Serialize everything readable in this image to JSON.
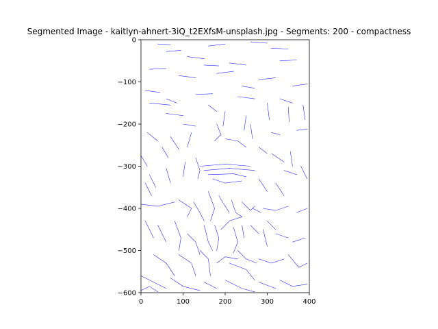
{
  "chart_data": {
    "type": "line",
    "title": "Segmented Image - kaitlyn-ahnert-3iQ_t2EXfsM-unsplash.jpg - Segments: 200 - compactness",
    "xlabel": "",
    "ylabel": "",
    "xlim": [
      0,
      400
    ],
    "ylim": [
      -600,
      0
    ],
    "x_ticks": [
      0,
      100,
      200,
      300,
      400
    ],
    "x_tick_labels": [
      "0",
      "100",
      "200",
      "300",
      "400"
    ],
    "y_ticks": [
      0,
      -100,
      -200,
      -300,
      -400,
      -500,
      -600
    ],
    "y_tick_labels": [
      "0",
      "−100",
      "−200",
      "−300",
      "−400",
      "−500",
      "−600"
    ],
    "line_color": "#0000ff",
    "grid": false,
    "legend": "none",
    "series": [
      {
        "values": [
          [
            40,
            -10
          ],
          [
            70,
            -12
          ]
        ]
      },
      {
        "values": [
          [
            60,
            -28
          ],
          [
            95,
            -25
          ]
        ]
      },
      {
        "values": [
          [
            160,
            -15
          ],
          [
            200,
            -10
          ]
        ]
      },
      {
        "values": [
          [
            260,
            -5
          ],
          [
            300,
            -8
          ]
        ]
      },
      {
        "values": [
          [
            310,
            -20
          ],
          [
            350,
            -22
          ]
        ]
      },
      {
        "values": [
          [
            110,
            -40
          ],
          [
            150,
            -45
          ]
        ]
      },
      {
        "values": [
          [
            210,
            -55
          ],
          [
            250,
            -60
          ]
        ]
      },
      {
        "values": [
          [
            330,
            -50
          ],
          [
            370,
            -48
          ]
        ]
      },
      {
        "values": [
          [
            20,
            -70
          ],
          [
            60,
            -68
          ]
        ]
      },
      {
        "values": [
          [
            90,
            -85
          ],
          [
            130,
            -90
          ]
        ]
      },
      {
        "values": [
          [
            180,
            -80
          ],
          [
            220,
            -75
          ]
        ]
      },
      {
        "values": [
          [
            280,
            -95
          ],
          [
            320,
            -90
          ]
        ]
      },
      {
        "values": [
          [
            360,
            -110
          ],
          [
            395,
            -105
          ]
        ]
      },
      {
        "values": [
          [
            10,
            -120
          ],
          [
            45,
            -125
          ]
        ]
      },
      {
        "values": [
          [
            130,
            -130
          ],
          [
            170,
            -128
          ]
        ]
      },
      {
        "values": [
          [
            230,
            -135
          ],
          [
            270,
            -140
          ]
        ]
      },
      {
        "values": [
          [
            330,
            -140
          ],
          [
            360,
            -150
          ]
        ]
      },
      {
        "values": [
          [
            20,
            -150
          ],
          [
            70,
            -155
          ]
        ]
      },
      {
        "values": [
          [
            160,
            -155
          ],
          [
            180,
            -170
          ]
        ]
      },
      {
        "values": [
          [
            300,
            -150
          ],
          [
            305,
            -190
          ]
        ]
      },
      {
        "values": [
          [
            350,
            -160
          ],
          [
            352,
            -195
          ]
        ]
      },
      {
        "values": [
          [
            385,
            -155
          ],
          [
            390,
            -190
          ]
        ]
      },
      {
        "values": [
          [
            60,
            -175
          ],
          [
            100,
            -180
          ]
        ]
      },
      {
        "values": [
          [
            100,
            -200
          ],
          [
            130,
            -205
          ]
        ]
      },
      {
        "values": [
          [
            200,
            -170
          ],
          [
            195,
            -205
          ]
        ]
      },
      {
        "values": [
          [
            250,
            -180
          ],
          [
            245,
            -215
          ]
        ]
      },
      {
        "values": [
          [
            370,
            -215
          ],
          [
            395,
            -212
          ]
        ]
      },
      {
        "values": [
          [
            15,
            -220
          ],
          [
            40,
            -240
          ]
        ]
      },
      {
        "values": [
          [
            70,
            -230
          ],
          [
            90,
            -260
          ]
        ]
      },
      {
        "values": [
          [
            120,
            -220
          ],
          [
            110,
            -255
          ]
        ]
      },
      {
        "values": [
          [
            260,
            -200
          ],
          [
            265,
            -235
          ]
        ]
      },
      {
        "values": [
          [
            310,
            -220
          ],
          [
            330,
            -225
          ]
        ]
      },
      {
        "values": [
          [
            180,
            -200
          ],
          [
            190,
            -225
          ],
          [
            175,
            -240
          ]
        ]
      },
      {
        "values": [
          [
            200,
            -235
          ],
          [
            230,
            -240
          ],
          [
            250,
            -255
          ]
        ]
      },
      {
        "values": [
          [
            0,
            -275
          ],
          [
            15,
            -300
          ]
        ]
      },
      {
        "values": [
          [
            20,
            -320
          ],
          [
            35,
            -350
          ]
        ]
      },
      {
        "values": [
          [
            60,
            -305
          ],
          [
            70,
            -340
          ]
        ]
      },
      {
        "values": [
          [
            105,
            -290
          ],
          [
            100,
            -325
          ]
        ]
      },
      {
        "values": [
          [
            130,
            -280
          ],
          [
            140,
            -310
          ],
          [
            135,
            -330
          ]
        ]
      },
      {
        "values": [
          [
            140,
            -300
          ],
          [
            200,
            -295
          ],
          [
            260,
            -300
          ]
        ]
      },
      {
        "values": [
          [
            150,
            -310
          ],
          [
            210,
            -305
          ],
          [
            270,
            -310
          ]
        ]
      },
      {
        "values": [
          [
            160,
            -320
          ],
          [
            220,
            -318
          ],
          [
            250,
            -325
          ]
        ]
      },
      {
        "values": [
          [
            170,
            -330
          ],
          [
            200,
            -340
          ],
          [
            240,
            -335
          ]
        ]
      },
      {
        "values": [
          [
            280,
            -255
          ],
          [
            300,
            -270
          ]
        ]
      },
      {
        "values": [
          [
            310,
            -270
          ],
          [
            340,
            -290
          ]
        ]
      },
      {
        "values": [
          [
            355,
            -265
          ],
          [
            360,
            -300
          ]
        ]
      },
      {
        "values": [
          [
            380,
            -300
          ],
          [
            395,
            -330
          ]
        ]
      },
      {
        "values": [
          [
            280,
            -330
          ],
          [
            300,
            -360
          ]
        ]
      },
      {
        "values": [
          [
            320,
            -340
          ],
          [
            340,
            -370
          ]
        ]
      },
      {
        "values": [
          [
            0,
            -390
          ],
          [
            40,
            -395
          ],
          [
            80,
            -385
          ]
        ]
      },
      {
        "values": [
          [
            90,
            -380
          ],
          [
            120,
            -400
          ],
          [
            110,
            -420
          ]
        ]
      },
      {
        "values": [
          [
            125,
            -385
          ],
          [
            140,
            -410
          ],
          [
            150,
            -430
          ]
        ]
      },
      {
        "values": [
          [
            160,
            -360
          ],
          [
            175,
            -400
          ],
          [
            165,
            -430
          ]
        ]
      },
      {
        "values": [
          [
            185,
            -370
          ],
          [
            200,
            -395
          ],
          [
            210,
            -410
          ]
        ]
      },
      {
        "values": [
          [
            215,
            -380
          ],
          [
            225,
            -410
          ],
          [
            240,
            -420
          ]
        ]
      },
      {
        "values": [
          [
            240,
            -385
          ],
          [
            260,
            -405
          ],
          [
            270,
            -395
          ]
        ]
      },
      {
        "values": [
          [
            265,
            -400
          ],
          [
            285,
            -410
          ]
        ]
      },
      {
        "values": [
          [
            290,
            -400
          ],
          [
            320,
            -405
          ],
          [
            350,
            -395
          ]
        ]
      },
      {
        "values": [
          [
            370,
            -410
          ],
          [
            395,
            -400
          ]
        ]
      },
      {
        "values": [
          [
            10,
            -430
          ],
          [
            30,
            -470
          ]
        ]
      },
      {
        "values": [
          [
            40,
            -440
          ],
          [
            60,
            -480
          ]
        ]
      },
      {
        "values": [
          [
            80,
            -430
          ],
          [
            95,
            -470
          ],
          [
            90,
            -500
          ]
        ]
      },
      {
        "values": [
          [
            150,
            -440
          ],
          [
            160,
            -480
          ],
          [
            170,
            -500
          ]
        ]
      },
      {
        "values": [
          [
            175,
            -440
          ],
          [
            185,
            -470
          ],
          [
            180,
            -500
          ]
        ]
      },
      {
        "values": [
          [
            190,
            -450
          ],
          [
            210,
            -430
          ],
          [
            240,
            -420
          ]
        ]
      },
      {
        "values": [
          [
            220,
            -445
          ],
          [
            230,
            -480
          ],
          [
            220,
            -505
          ]
        ]
      },
      {
        "values": [
          [
            240,
            -440
          ],
          [
            245,
            -470
          ]
        ]
      },
      {
        "values": [
          [
            260,
            -440
          ],
          [
            280,
            -460
          ]
        ]
      },
      {
        "values": [
          [
            290,
            -450
          ],
          [
            300,
            -490
          ]
        ]
      },
      {
        "values": [
          [
            320,
            -460
          ],
          [
            350,
            -470
          ]
        ]
      },
      {
        "values": [
          [
            360,
            -480
          ],
          [
            390,
            -470
          ]
        ]
      },
      {
        "values": [
          [
            30,
            -510
          ],
          [
            60,
            -530
          ],
          [
            80,
            -560
          ]
        ]
      },
      {
        "values": [
          [
            90,
            -510
          ],
          [
            120,
            -530
          ],
          [
            130,
            -560
          ]
        ]
      },
      {
        "values": [
          [
            140,
            -500
          ],
          [
            160,
            -520
          ],
          [
            165,
            -560
          ]
        ]
      },
      {
        "values": [
          [
            180,
            -530
          ],
          [
            200,
            -515
          ],
          [
            230,
            -520
          ]
        ]
      },
      {
        "values": [
          [
            210,
            -530
          ],
          [
            250,
            -545
          ],
          [
            270,
            -570
          ]
        ]
      },
      {
        "values": [
          [
            280,
            -520
          ],
          [
            310,
            -530
          ],
          [
            340,
            -520
          ]
        ]
      },
      {
        "values": [
          [
            350,
            -510
          ],
          [
            375,
            -540
          ],
          [
            395,
            -530
          ]
        ]
      },
      {
        "values": [
          [
            0,
            -560
          ],
          [
            30,
            -575
          ],
          [
            60,
            -590
          ]
        ]
      },
      {
        "values": [
          [
            70,
            -565
          ],
          [
            100,
            -585
          ],
          [
            140,
            -595
          ]
        ]
      },
      {
        "values": [
          [
            150,
            -575
          ],
          [
            180,
            -590
          ]
        ]
      },
      {
        "values": [
          [
            200,
            -570
          ],
          [
            240,
            -590
          ],
          [
            270,
            -598
          ]
        ]
      },
      {
        "values": [
          [
            280,
            -575
          ],
          [
            320,
            -590
          ]
        ]
      },
      {
        "values": [
          [
            330,
            -570
          ],
          [
            360,
            -585
          ],
          [
            395,
            -580
          ]
        ]
      },
      {
        "values": [
          [
            0,
            -595
          ],
          [
            20,
            -585
          ],
          [
            40,
            -598
          ]
        ]
      },
      {
        "values": [
          [
            230,
            -500
          ],
          [
            250,
            -520
          ],
          [
            275,
            -530
          ]
        ]
      },
      {
        "values": [
          [
            110,
            -460
          ],
          [
            130,
            -480
          ],
          [
            140,
            -510
          ]
        ]
      },
      {
        "values": [
          [
            60,
            -140
          ],
          [
            85,
            -150
          ]
        ]
      },
      {
        "values": [
          [
            240,
            -110
          ],
          [
            270,
            -115
          ]
        ]
      },
      {
        "values": [
          [
            150,
            -60
          ],
          [
            185,
            -62
          ]
        ]
      },
      {
        "values": [
          [
            50,
            -255
          ],
          [
            65,
            -280
          ]
        ]
      },
      {
        "values": [
          [
            340,
            -310
          ],
          [
            370,
            -320
          ]
        ]
      },
      {
        "values": [
          [
            300,
            -430
          ],
          [
            320,
            -450
          ]
        ]
      },
      {
        "values": [
          [
            10,
            -340
          ],
          [
            25,
            -370
          ]
        ]
      }
    ]
  }
}
